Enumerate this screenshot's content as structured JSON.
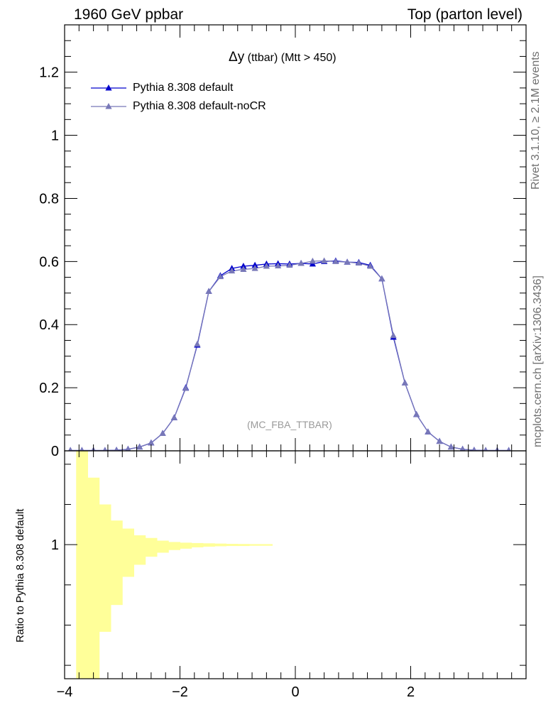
{
  "header": {
    "left": "1960 GeV ppbar",
    "right": "Top (parton level)"
  },
  "side_labels": {
    "rivet": "Rivet 3.1.10, ≥ 2.1M events",
    "source": "mcplots.cern.ch [arXiv:1306.3436]"
  },
  "observable": {
    "main": "Δy",
    "detail": " (ttbar) (Mtt > 450)"
  },
  "analysis_label": "(MC_FBA_TTBAR)",
  "ratio_ylabel": "Ratio to Pythia 8.308 default",
  "chart_data": [
    {
      "type": "line",
      "title": "Δy (ttbar) (Mtt > 450)",
      "xlim": [
        -4.0,
        4.0
      ],
      "ylim": [
        0,
        1.35
      ],
      "yticks": [
        0,
        0.2,
        0.4,
        0.6,
        0.8,
        1,
        1.2
      ],
      "ytick_labels": [
        "0",
        "0.2",
        "0.4",
        "0.6",
        "0.8",
        "1",
        "1.2"
      ],
      "legend_position": "top-left",
      "x": [
        -3.9,
        -3.7,
        -3.5,
        -3.3,
        -3.1,
        -2.9,
        -2.7,
        -2.5,
        -2.3,
        -2.1,
        -1.9,
        -1.7,
        -1.5,
        -1.3,
        -1.1,
        -0.9,
        -0.7,
        -0.5,
        -0.3,
        -0.1,
        0.1,
        0.3,
        0.5,
        0.7,
        0.9,
        1.1,
        1.3,
        1.5,
        1.7,
        1.9,
        2.1,
        2.3,
        2.5,
        2.7,
        2.9,
        3.1,
        3.3,
        3.5,
        3.7
      ],
      "series": [
        {
          "name": "Pythia 8.308 default",
          "color": "#0000cc",
          "marker": "filled-triangle",
          "values": [
            0.001,
            0.001,
            0.001,
            0.001,
            0.002,
            0.005,
            0.012,
            0.025,
            0.055,
            0.105,
            0.2,
            0.335,
            0.505,
            0.555,
            0.578,
            0.585,
            0.588,
            0.592,
            0.593,
            0.592,
            0.594,
            0.592,
            0.6,
            0.602,
            0.598,
            0.597,
            0.588,
            0.545,
            0.36,
            0.215,
            0.115,
            0.06,
            0.03,
            0.012,
            0.005,
            0.002,
            0.001,
            0.001,
            0.001
          ]
        },
        {
          "name": "Pythia 8.308 default-noCR",
          "color": "#7878b8",
          "marker": "filled-triangle",
          "values": [
            0.001,
            0.001,
            0.001,
            0.001,
            0.002,
            0.005,
            0.012,
            0.025,
            0.055,
            0.105,
            0.198,
            0.338,
            0.505,
            0.552,
            0.57,
            0.575,
            0.578,
            0.585,
            0.586,
            0.588,
            0.594,
            0.601,
            0.602,
            0.6,
            0.598,
            0.595,
            0.585,
            0.545,
            0.365,
            0.215,
            0.115,
            0.06,
            0.03,
            0.012,
            0.005,
            0.002,
            0.001,
            0.001,
            0.001
          ]
        }
      ]
    },
    {
      "type": "area",
      "ylabel": "Ratio to Pythia 8.308 default",
      "xlim": [
        -4.0,
        4.0
      ],
      "ylim": [
        0.0,
        1.7
      ],
      "xticks": [
        -4,
        -2,
        0,
        2
      ],
      "xtick_labels": [
        "−4",
        "−2",
        "0",
        "2"
      ],
      "yticks": [
        1
      ],
      "ytick_labels": [
        "1"
      ],
      "band_color": "#ffff99",
      "band_x_edges": [
        -3.8,
        -3.6,
        -3.4,
        -3.2,
        -3.0,
        -2.8,
        -2.6,
        -2.4,
        -2.2,
        -2.0,
        -1.8,
        -1.6,
        -1.4,
        -1.2,
        -1.0,
        -0.8,
        -0.6,
        -0.4
      ],
      "band_low": [
        0.0,
        0.0,
        0.35,
        0.55,
        0.76,
        0.85,
        0.91,
        0.94,
        0.96,
        0.97,
        0.98,
        0.985,
        0.988,
        0.99,
        0.99,
        0.992,
        0.992
      ],
      "band_high": [
        1.7,
        1.5,
        1.3,
        1.18,
        1.12,
        1.07,
        1.05,
        1.03,
        1.02,
        1.015,
        1.012,
        1.01,
        1.008,
        1.006,
        1.005,
        1.004,
        1.004
      ]
    }
  ]
}
